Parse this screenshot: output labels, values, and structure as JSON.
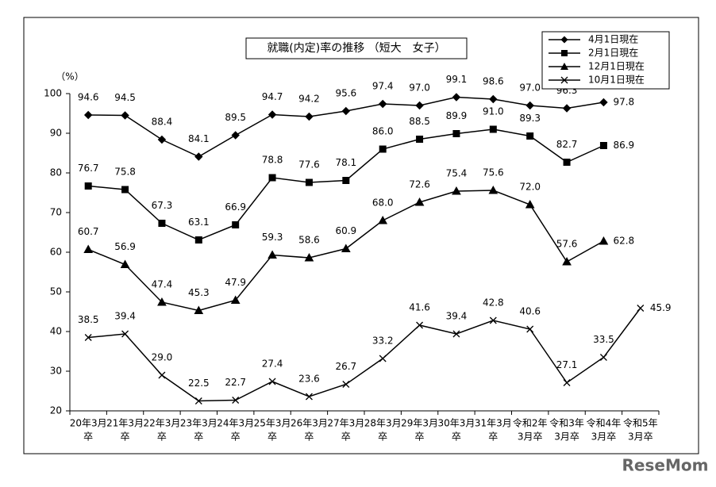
{
  "chart_data": {
    "type": "line",
    "title": "就職(内定)率の推移 （短大　女子）",
    "y_unit": "（%）",
    "watermark": "ReseMom",
    "categories": [
      [
        "20年3月",
        "卒"
      ],
      [
        "21年3月",
        "卒"
      ],
      [
        "22年3月",
        "卒"
      ],
      [
        "23年3月",
        "卒"
      ],
      [
        "24年3月",
        "卒"
      ],
      [
        "25年3月",
        "卒"
      ],
      [
        "26年3月",
        "卒"
      ],
      [
        "27年3月",
        "卒"
      ],
      [
        "28年3月",
        "卒"
      ],
      [
        "29年3月",
        "卒"
      ],
      [
        "30年3月",
        "卒"
      ],
      [
        "31年3月",
        "卒"
      ],
      [
        "令和2年",
        "3月卒"
      ],
      [
        "令和3年",
        "3月卒"
      ],
      [
        "令和4年",
        "3月卒"
      ],
      [
        "令和5年",
        "3月卒"
      ]
    ],
    "ylim": [
      20,
      100
    ],
    "yticks": [
      20,
      30,
      40,
      50,
      60,
      70,
      80,
      90,
      100
    ],
    "legend": "top-right",
    "series": [
      {
        "name": "4月1日現在",
        "color": "#000000",
        "marker": "diamond",
        "values": [
          94.6,
          94.5,
          88.4,
          84.1,
          89.5,
          94.7,
          94.2,
          95.6,
          97.4,
          97.0,
          99.1,
          98.6,
          97.0,
          96.3,
          97.8,
          null
        ],
        "value_labels": [
          "94.6",
          "94.5",
          "88.4",
          "84.1",
          "89.5",
          "94.7",
          "94.2",
          "95.6",
          "97.4",
          "97.0",
          "99.1",
          "98.6",
          "97.0",
          "96.3",
          "97.8",
          null
        ]
      },
      {
        "name": "2月1日現在",
        "color": "#000000",
        "marker": "square",
        "values": [
          76.7,
          75.8,
          67.3,
          63.1,
          66.9,
          78.8,
          77.6,
          78.1,
          86.0,
          88.5,
          89.9,
          91.0,
          89.3,
          82.7,
          86.9,
          null
        ],
        "value_labels": [
          "76.7",
          "75.8",
          "67.3",
          "63.1",
          "66.9",
          "78.8",
          "77.6",
          "78.1",
          "86.0",
          "88.5",
          "89.9",
          "91.0",
          "89.3",
          "82.7",
          "86.9",
          null
        ]
      },
      {
        "name": "12月1日現在",
        "color": "#000000",
        "marker": "triangle",
        "values": [
          60.7,
          56.9,
          47.4,
          45.3,
          47.9,
          59.3,
          58.6,
          60.9,
          68.0,
          72.6,
          75.4,
          75.6,
          72.0,
          57.6,
          62.8,
          null
        ],
        "value_labels": [
          "60.7",
          "56.9",
          "47.4",
          "45.3",
          "47.9",
          "59.3",
          "58.6",
          "60.9",
          "68.0",
          "72.6",
          "75.4",
          "75.6",
          "72.0",
          "57.6",
          "62.8",
          null
        ]
      },
      {
        "name": "10月1日現在",
        "color": "#000000",
        "marker": "x",
        "values": [
          38.5,
          39.4,
          29.0,
          22.5,
          22.7,
          27.4,
          23.6,
          26.7,
          33.2,
          41.6,
          39.4,
          42.8,
          40.6,
          27.1,
          33.5,
          45.9
        ],
        "value_labels": [
          "38.5",
          "39.4",
          "29.0",
          "22.5",
          "22.7",
          "27.4",
          "23.6",
          "26.7",
          "33.2",
          "41.6",
          "39.4",
          "42.8",
          "40.6",
          "27.1",
          "33.5",
          "45.9"
        ]
      }
    ]
  }
}
